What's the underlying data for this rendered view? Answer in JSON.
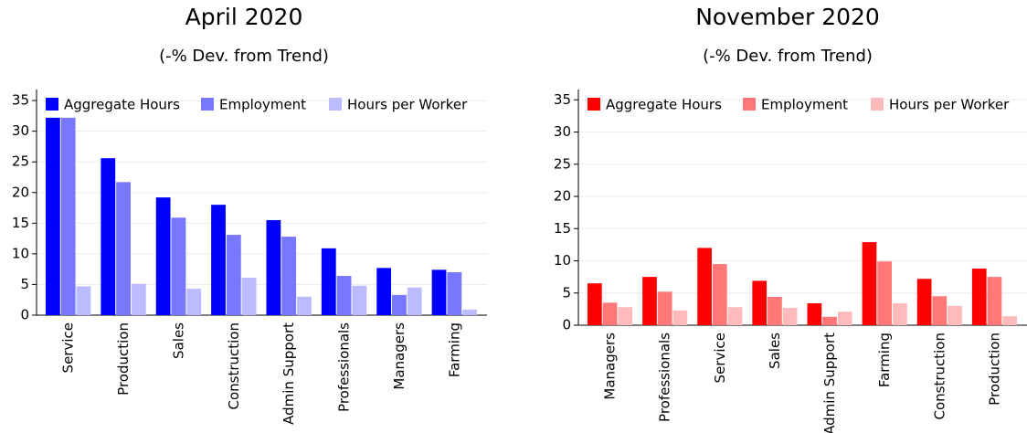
{
  "chart_data": [
    {
      "type": "bar",
      "title": "April 2020",
      "subtitle": "(-% Dev. from Trend)",
      "categories": [
        "Service",
        "Production",
        "Sales",
        "Construction",
        "Admin Support",
        "Professionals",
        "Managers",
        "Farming"
      ],
      "series": [
        {
          "name": "Aggregate Hours",
          "color": "#0000ff",
          "values": [
            32.2,
            25.6,
            19.2,
            18.0,
            15.5,
            10.9,
            7.7,
            7.4
          ]
        },
        {
          "name": "Employment",
          "color": "#7777ff",
          "values": [
            32.2,
            21.7,
            15.9,
            13.1,
            12.8,
            6.4,
            3.3,
            7.0
          ]
        },
        {
          "name": "Hours per Worker",
          "color": "#bbbbff",
          "values": [
            4.7,
            5.1,
            4.3,
            6.1,
            3.0,
            4.8,
            4.5,
            0.9
          ]
        }
      ],
      "ylim": [
        0,
        36.8
      ],
      "yticks": [
        0,
        5,
        10,
        15,
        20,
        25,
        30,
        35
      ],
      "grid": true,
      "legend": "top"
    },
    {
      "type": "bar",
      "title": "November 2020",
      "subtitle": "(-% Dev. from Trend)",
      "categories": [
        "Managers",
        "Professionals",
        "Service",
        "Sales",
        "Admin Support",
        "Farming",
        "Construction",
        "Production"
      ],
      "series": [
        {
          "name": "Aggregate Hours",
          "color": "#ff0000",
          "values": [
            6.5,
            7.5,
            12.0,
            6.9,
            3.4,
            12.9,
            7.2,
            8.8
          ]
        },
        {
          "name": "Employment",
          "color": "#ff7777",
          "values": [
            3.5,
            5.2,
            9.5,
            4.4,
            1.3,
            9.9,
            4.5,
            7.5
          ]
        },
        {
          "name": "Hours per Worker",
          "color": "#ffbbbb",
          "values": [
            2.8,
            2.3,
            2.8,
            2.7,
            2.1,
            3.4,
            3.0,
            1.4
          ]
        }
      ],
      "ylim": [
        0,
        36.6
      ],
      "yticks": [
        0,
        5,
        10,
        15,
        20,
        25,
        30,
        35
      ],
      "grid": true,
      "legend": "top"
    }
  ]
}
